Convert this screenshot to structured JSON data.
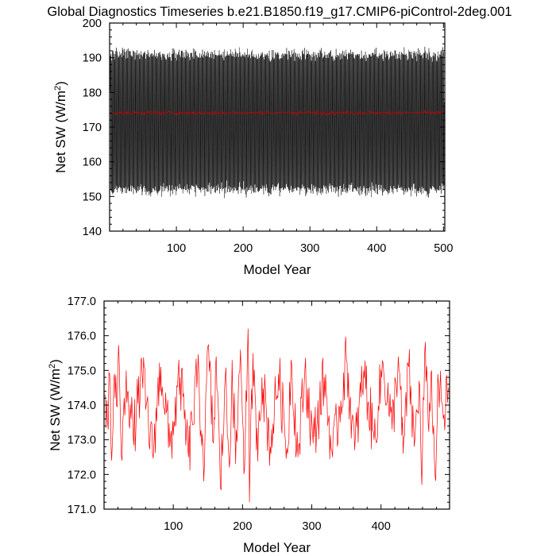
{
  "title": "Global Diagnostics Timeseries b.e21.B1850.f19_g17.CMIP6-piControl-2deg.001",
  "colors": {
    "monthly": "#000000",
    "annual": "#cc0000",
    "annual_bottom": "#ff0000",
    "axes": "#000000",
    "background": "#ffffff"
  },
  "chart_data": [
    {
      "type": "line",
      "title": "",
      "xlabel": "Model Year",
      "ylabel": "Net SW (W/m²)",
      "ylabel_base": "Net SW (W/m",
      "ylabel_sup": "2",
      "ylabel_end": ")",
      "xlim": [
        0,
        502
      ],
      "ylim": [
        140,
        200
      ],
      "xticks": [
        100,
        200,
        300,
        400,
        500
      ],
      "yticks": [
        140,
        150,
        160,
        170,
        180,
        190,
        200
      ],
      "ytick_labels": [
        "140",
        "150",
        "160",
        "170",
        "180",
        "190",
        "200"
      ],
      "grid": false,
      "series": [
        {
          "role": "monthly",
          "color": "#000000",
          "x_range": [
            1,
            501
          ],
          "samples_per_year": 12,
          "seasonal_mean": 171.5,
          "seasonal_amplitude": 19.5,
          "envelope": [
            150,
            192
          ]
        },
        {
          "role": "annual",
          "color": "#cc0000",
          "mean": 174.1,
          "envelope": [
            172.6,
            175.5
          ]
        }
      ]
    },
    {
      "type": "line",
      "title": "",
      "xlabel": "Model Year",
      "ylabel": "Net SW (W/m²)",
      "ylabel_base": "Net SW (W/m",
      "ylabel_sup": "2",
      "ylabel_end": ")",
      "xlim": [
        0,
        499
      ],
      "ylim": [
        171,
        177
      ],
      "xticks": [
        100,
        200,
        300,
        400
      ],
      "yticks": [
        171,
        172,
        173,
        174,
        175,
        176,
        177
      ],
      "ytick_labels": [
        "171.0",
        "172.0",
        "173.0",
        "174.0",
        "175.0",
        "176.0",
        "177.0"
      ],
      "grid": false,
      "series": [
        {
          "role": "annual",
          "color": "#ff0000",
          "x_range": [
            1,
            498
          ],
          "mean": 174.0,
          "points": [
            [
              1,
              174.3
            ],
            [
              5,
              173.5
            ],
            [
              8,
              174.9
            ],
            [
              11,
              172.4
            ],
            [
              15,
              174.9
            ],
            [
              18,
              174.0
            ],
            [
              22,
              175.2
            ],
            [
              26,
              172.4
            ],
            [
              32,
              175.0
            ],
            [
              42,
              173.1
            ],
            [
              55,
              174.9
            ],
            [
              70,
              172.6
            ],
            [
              82,
              175.1
            ],
            [
              95,
              172.8
            ],
            [
              110,
              174.8
            ],
            [
              122,
              172.5
            ],
            [
              135,
              174.9
            ],
            [
              145,
              172.3
            ],
            [
              150,
              175.7
            ],
            [
              158,
              172.9
            ],
            [
              162,
              175.4
            ],
            [
              168,
              171.6
            ],
            [
              175,
              174.8
            ],
            [
              181,
              172.2
            ],
            [
              185,
              175.3
            ],
            [
              190,
              172.3
            ],
            [
              197,
              175.6
            ],
            [
              203,
              172.2
            ],
            [
              208,
              176.2
            ],
            [
              210,
              171.2
            ],
            [
              215,
              175.5
            ],
            [
              220,
              172.7
            ],
            [
              228,
              174.8
            ],
            [
              240,
              172.8
            ],
            [
              252,
              174.9
            ],
            [
              265,
              172.6
            ],
            [
              270,
              175.3
            ],
            [
              280,
              172.5
            ],
            [
              290,
              175.0
            ],
            [
              302,
              172.9
            ],
            [
              318,
              174.8
            ],
            [
              330,
              172.5
            ],
            [
              350,
              175.3
            ],
            [
              362,
              172.7
            ],
            [
              375,
              175.0
            ],
            [
              390,
              173.0
            ],
            [
              403,
              175.2
            ],
            [
              416,
              173.3
            ],
            [
              425,
              175.4
            ],
            [
              432,
              172.6
            ],
            [
              440,
              175.1
            ],
            [
              448,
              172.8
            ],
            [
              455,
              174.7
            ],
            [
              459,
              171.7
            ],
            [
              463,
              175.5
            ],
            [
              468,
              173.5
            ],
            [
              472,
              174.9
            ],
            [
              478,
              172.0
            ],
            [
              483,
              174.6
            ],
            [
              490,
              173.6
            ],
            [
              498,
              174.5
            ]
          ]
        }
      ]
    }
  ]
}
